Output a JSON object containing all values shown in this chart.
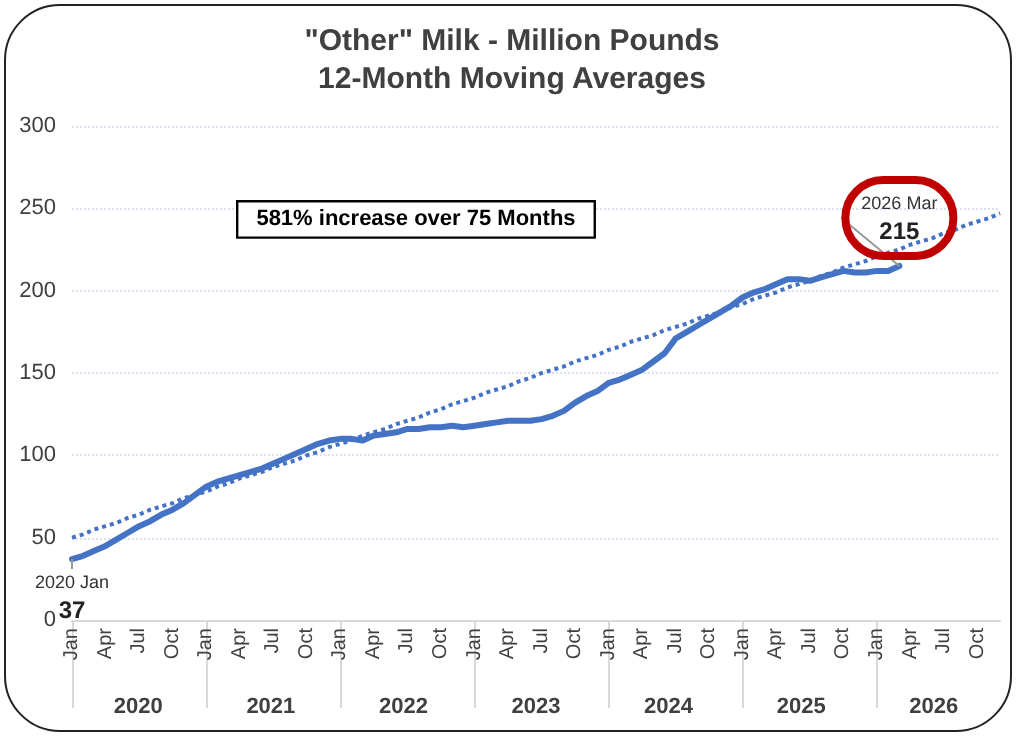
{
  "chart_data": {
    "type": "line",
    "title": "\"Other\" Milk - Million Pounds",
    "subtitle": "12-Month Moving Averages",
    "categories": [
      "Jan",
      null,
      null,
      "Apr",
      null,
      null,
      "Jul",
      null,
      null,
      "Oct",
      null,
      null,
      "Jan",
      null,
      null,
      "Apr",
      null,
      null,
      "Jul",
      null,
      null,
      "Oct",
      null,
      null,
      "Jan",
      null,
      null,
      "Apr",
      null,
      null,
      "Jul",
      null,
      null,
      "Oct",
      null,
      null,
      "Jan",
      null,
      null,
      "Apr",
      null,
      null,
      "Jul",
      null,
      null,
      "Oct",
      null,
      null,
      "Jan",
      null,
      null,
      "Apr",
      null,
      null,
      "Jul",
      null,
      null,
      "Oct",
      null,
      null,
      "Jan",
      null,
      null,
      "Apr",
      null,
      null,
      "Jul",
      null,
      null,
      "Oct",
      null,
      null,
      "Jan",
      null,
      null,
      "Apr",
      null,
      null,
      "Jul",
      null,
      null,
      "Oct",
      null,
      null
    ],
    "series": [
      {
        "color": "#4472c4",
        "line_style": "solid",
        "values": [
          37,
          39,
          42,
          45,
          49,
          53,
          57,
          60,
          64,
          67,
          71,
          76,
          81,
          84,
          86,
          88,
          90,
          92,
          95,
          98,
          101,
          104,
          107,
          109,
          110,
          110,
          109,
          112,
          113,
          114,
          116,
          116,
          117,
          117,
          118,
          117,
          118,
          119,
          120,
          121,
          121,
          121,
          122,
          124,
          127,
          132,
          136,
          139,
          144,
          146,
          149,
          152,
          157,
          162,
          171,
          175,
          179,
          183,
          187,
          191,
          196,
          199,
          201,
          204,
          207,
          207,
          206,
          208,
          210,
          212,
          211,
          211,
          212,
          212,
          215,
          null,
          null,
          null,
          null,
          null,
          null,
          null,
          null,
          null
        ],
        "value_labels": [
          "2020 Jan\n37",
          null,
          null,
          null,
          null,
          null,
          null,
          null,
          null,
          null,
          null,
          null,
          null,
          null,
          null,
          null,
          null,
          null,
          null,
          null,
          null,
          null,
          null,
          null,
          null,
          null,
          null,
          null,
          null,
          null,
          null,
          null,
          null,
          null,
          null,
          null,
          null,
          null,
          null,
          null,
          null,
          null,
          null,
          null,
          null,
          null,
          null,
          null,
          null,
          null,
          null,
          null,
          null,
          null,
          null,
          null,
          null,
          null,
          null,
          null,
          null,
          null,
          null,
          null,
          null,
          null,
          null,
          null,
          null,
          null,
          null,
          null,
          null,
          null,
          "2026 Mar\n215",
          null,
          null,
          null,
          null,
          null,
          null,
          null,
          null,
          null
        ]
      },
      {
        "color": "#4472c4",
        "line_style": "dotted",
        "values": [
          50,
          52,
          55,
          57,
          59,
          62,
          64,
          67,
          69,
          71,
          74,
          76,
          78,
          81,
          83,
          86,
          88,
          90,
          93,
          95,
          97,
          100,
          102,
          105,
          107,
          109,
          112,
          114,
          116,
          119,
          121,
          123,
          126,
          128,
          131,
          133,
          135,
          138,
          140,
          142,
          145,
          147,
          150,
          152,
          154,
          157,
          159,
          161,
          164,
          166,
          169,
          171,
          173,
          176,
          178,
          180,
          183,
          185,
          187,
          190,
          192,
          195,
          197,
          199,
          202,
          204,
          206,
          209,
          211,
          214,
          216,
          218,
          221,
          223,
          225,
          228,
          230,
          232,
          235,
          237,
          240,
          242,
          244,
          247
        ]
      }
    ],
    "ylim": [
      0,
      300
    ],
    "yticks": [
      0,
      50,
      100,
      150,
      200,
      250,
      300
    ],
    "grid": "y",
    "marker": "none",
    "annotations": [
      "581% increase over 75 Months",
      "2020",
      "2021",
      "2022",
      "2023",
      "2024",
      "2025",
      "2026"
    ]
  }
}
